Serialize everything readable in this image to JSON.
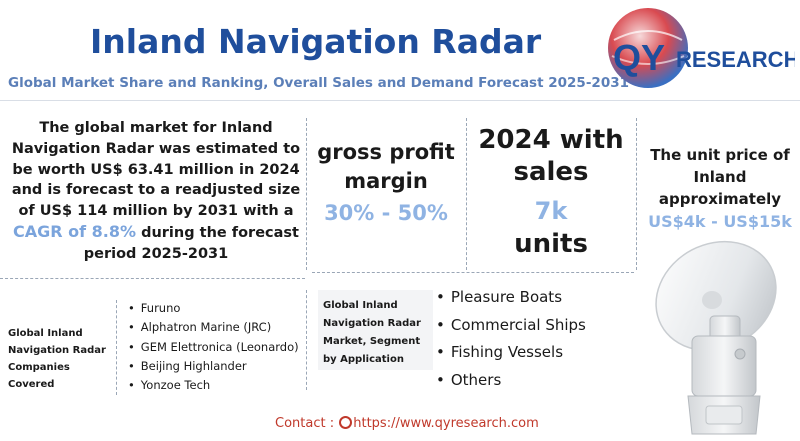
{
  "header": {
    "title": "Inland Navigation Radar",
    "subtitle": "Global Market Share and Ranking, Overall Sales and Demand Forecast 2025-2031",
    "logo_text_qy": "QY",
    "logo_text_research": "RESEARCH"
  },
  "summary": {
    "part1": "The global market for Inland Navigation Radar was estimated to be worth US$ 63.41 million in 2024 and is forecast to a readjusted size of US$ 114 million by 2031 with a ",
    "cagr": "CAGR of 8.8%",
    "part2": " during the forecast period 2025-2031"
  },
  "stats": {
    "gross_margin_label": "gross profit margin",
    "gross_margin_value": "30% - 50%",
    "sales_label": "2024 with sales",
    "sales_value": "7k",
    "sales_unit": "units",
    "price_label": "The unit price of Inland approximately",
    "price_value": "US$4k - US$15k"
  },
  "companies": {
    "label": "Global Inland Navigation Radar Companies Covered",
    "items": [
      "Furuno",
      "Alphatron Marine (JRC)",
      "GEM Elettronica (Leonardo)",
      "Beijing Highlander",
      "Yonzoe Tech"
    ]
  },
  "applications": {
    "label": "Global Inland Navigation Radar Market, Segment by Application",
    "items": [
      "Pleasure Boats",
      "Commercial Ships",
      "Fishing Vessels",
      "Others"
    ]
  },
  "contact": {
    "label": "Contact :",
    "url": "https://www.qyresearch.com"
  },
  "colors": {
    "title": "#1f4e9c",
    "accent": "#8fb3e3",
    "contact": "#c0392b",
    "logo_red": "#d9252b",
    "logo_blue": "#1f4e9c"
  }
}
